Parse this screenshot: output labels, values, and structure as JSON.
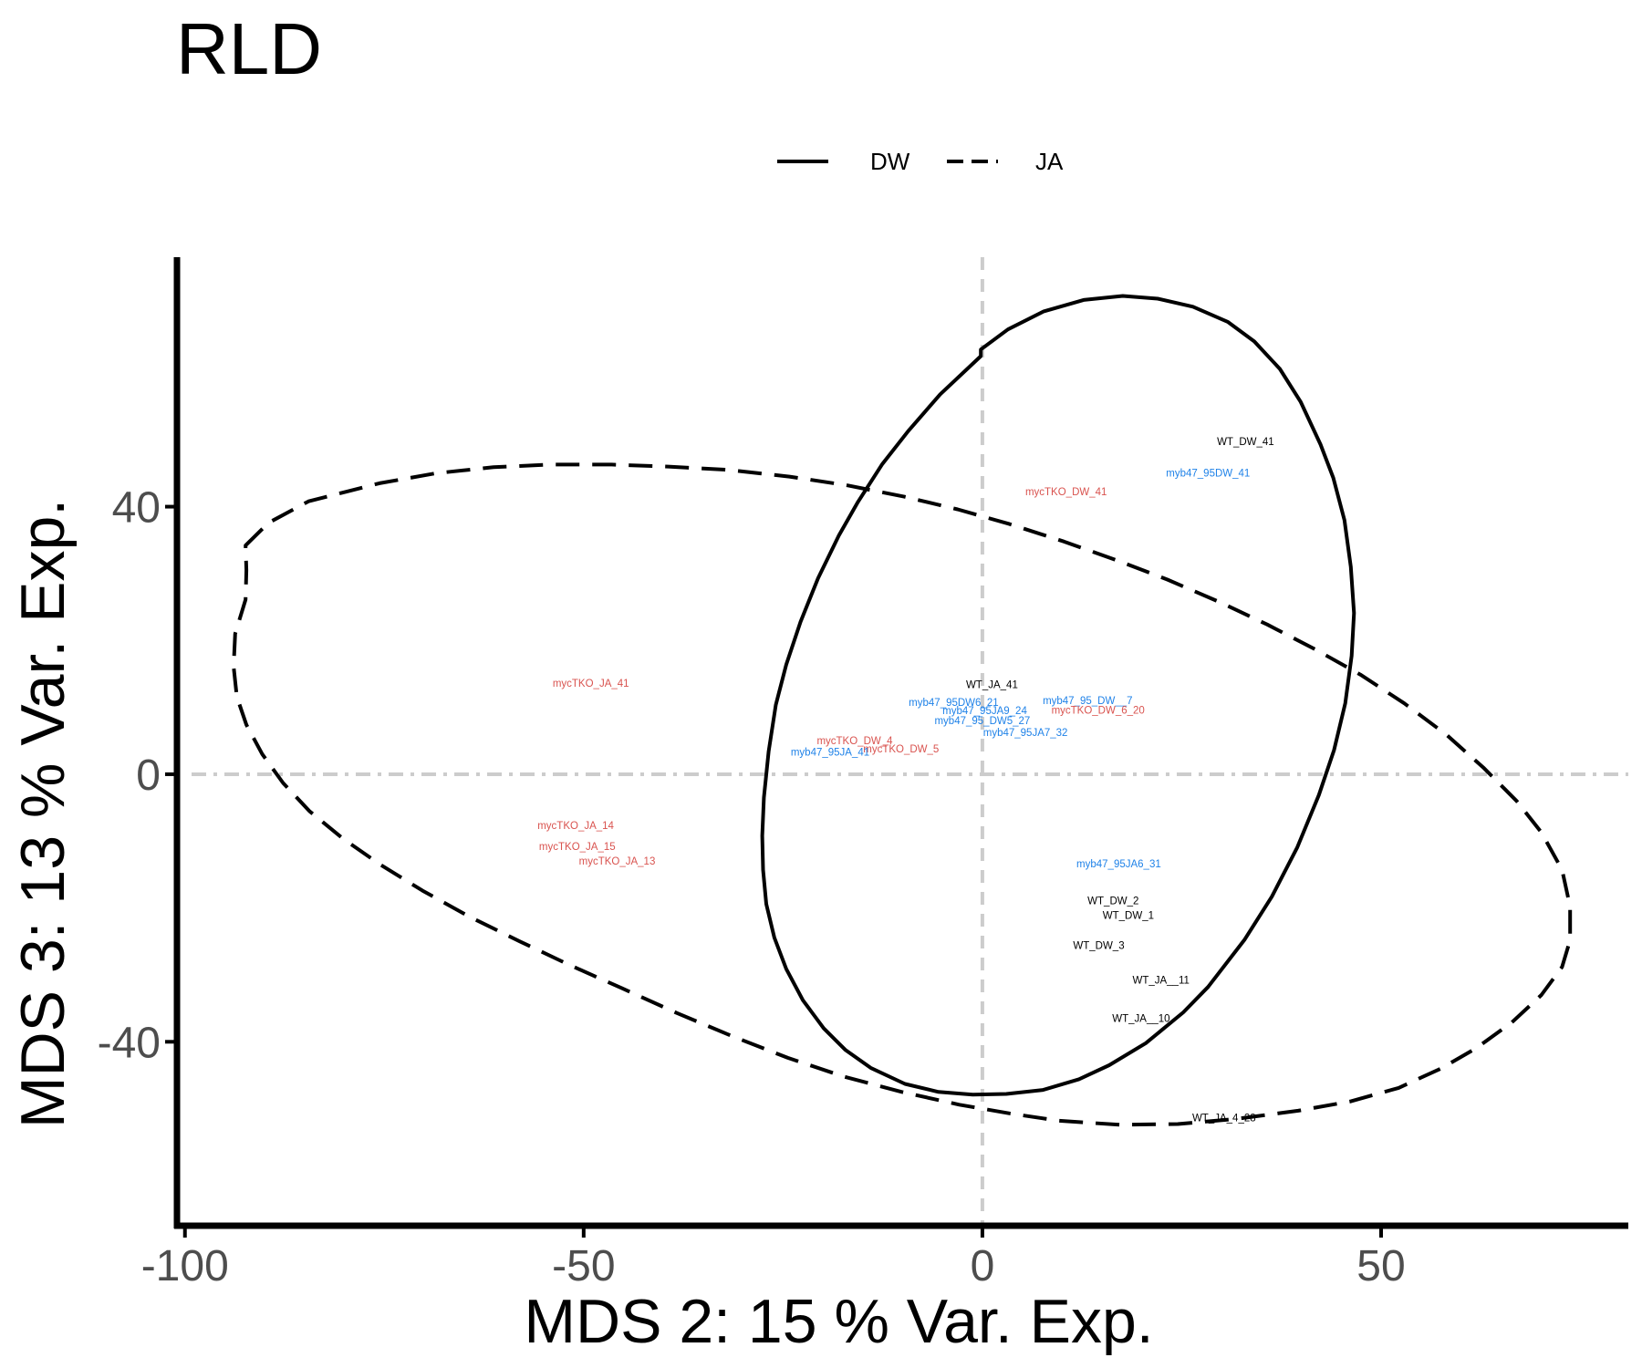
{
  "chart_data": {
    "type": "scatter",
    "title": "RLD",
    "xlabel": "MDS 2: 15 % Var. Exp.",
    "ylabel": "MDS 3: 13 % Var. Exp.",
    "xlim": [
      -101,
      81
    ],
    "ylim": [
      -67.5,
      77.3
    ],
    "xticks": [
      -100,
      -50,
      0,
      50
    ],
    "xtick_labels": [
      "-100",
      "-50",
      "0",
      "50"
    ],
    "yticks": [
      -40,
      0,
      40
    ],
    "ytick_labels": [
      "-40",
      "0",
      "40"
    ],
    "reference_lines": {
      "x": 0,
      "y": 0
    },
    "legend": {
      "placement": "top",
      "entries": [
        {
          "label": "DW",
          "linetype": "solid"
        },
        {
          "label": "JA",
          "linetype": "dashed"
        }
      ]
    },
    "colors": {
      "WT": "#000000",
      "myb47_95": "#1f82e8",
      "mycTKO": "#d9534f",
      "ellipse": "#000000",
      "refline": "#cccccc"
    },
    "points": [
      {
        "label": "WT_DW_41",
        "x": 33,
        "y": 49.6,
        "group": "WT"
      },
      {
        "label": "myb47_95DW_41",
        "x": 28.3,
        "y": 44.9,
        "group": "myb47_95"
      },
      {
        "label": "mycTKO_DW_41",
        "x": 10.5,
        "y": 42.1,
        "group": "mycTKO"
      },
      {
        "label": "mycTKO_JA_41",
        "x": -49.1,
        "y": 13.5,
        "group": "mycTKO"
      },
      {
        "label": "WT_JA_41",
        "x": 1.2,
        "y": 13.3,
        "group": "WT"
      },
      {
        "label": "myb47_95DW6_21",
        "x": -3.6,
        "y": 10.6,
        "group": "myb47_95"
      },
      {
        "label": "myb47_95_DW__7",
        "x": 13.2,
        "y": 10.9,
        "group": "myb47_95"
      },
      {
        "label": "mycTKO_DW_6_20",
        "x": 14.5,
        "y": 9.5,
        "group": "mycTKO"
      },
      {
        "label": "myb47_95JA9_24",
        "x": 0.3,
        "y": 9.4,
        "group": "myb47_95"
      },
      {
        "label": "myb47_95_DW5_27",
        "x": 0,
        "y": 7.9,
        "group": "myb47_95"
      },
      {
        "label": "myb47_95JA7_32",
        "x": 5.4,
        "y": 6.1,
        "group": "myb47_95"
      },
      {
        "label": "mycTKO_DW_4",
        "x": -16,
        "y": 4.9,
        "group": "mycTKO"
      },
      {
        "label": "mycTKO_DW_5",
        "x": -10.2,
        "y": 3.7,
        "group": "mycTKO"
      },
      {
        "label": "myb47_95JA_41",
        "x": -19.1,
        "y": 3.2,
        "group": "myb47_95"
      },
      {
        "label": "mycTKO_JA_14",
        "x": -51,
        "y": -7.8,
        "group": "mycTKO"
      },
      {
        "label": "mycTKO_JA_15",
        "x": -50.8,
        "y": -10.9,
        "group": "mycTKO"
      },
      {
        "label": "mycTKO_JA_13",
        "x": -45.8,
        "y": -13.1,
        "group": "mycTKO"
      },
      {
        "label": "myb47_95JA6_31",
        "x": 17.1,
        "y": -13.5,
        "group": "myb47_95"
      },
      {
        "label": "WT_DW_2",
        "x": 16.4,
        "y": -19,
        "group": "WT"
      },
      {
        "label": "WT_DW_1",
        "x": 18.3,
        "y": -21.2,
        "group": "WT"
      },
      {
        "label": "WT_DW_3",
        "x": 14.6,
        "y": -25.7,
        "group": "WT"
      },
      {
        "label": "WT_JA__11",
        "x": 22.4,
        "y": -30.9,
        "group": "WT"
      },
      {
        "label": "WT_JA__10",
        "x": 19.9,
        "y": -36.6,
        "group": "WT"
      },
      {
        "label": "WT_JA_4_28",
        "x": 30.3,
        "y": -51.5,
        "group": "WT"
      }
    ],
    "ellipses": [
      {
        "name": "DW",
        "linetype": "solid",
        "path": [
          [
            -0.2,
            63.5
          ],
          [
            3.2,
            66.5
          ],
          [
            7.7,
            69.2
          ],
          [
            12.7,
            70.9
          ],
          [
            17.6,
            71.5
          ],
          [
            22,
            71.1
          ],
          [
            26.4,
            69.9
          ],
          [
            30.8,
            67.6
          ],
          [
            34.1,
            64.7
          ],
          [
            37.3,
            60.6
          ],
          [
            39.9,
            55.7
          ],
          [
            42.4,
            49.3
          ],
          [
            44,
            44.3
          ],
          [
            45.4,
            38
          ],
          [
            46.2,
            31
          ],
          [
            46.6,
            24.1
          ],
          [
            46.3,
            17.7
          ],
          [
            45.5,
            10.6
          ],
          [
            44.1,
            3.6
          ],
          [
            42.2,
            -3.1
          ],
          [
            39.5,
            -10.9
          ],
          [
            36.3,
            -18.3
          ],
          [
            32.9,
            -24.7
          ],
          [
            28.3,
            -31.8
          ],
          [
            25.2,
            -35.6
          ],
          [
            20.5,
            -40.2
          ],
          [
            15.9,
            -43.5
          ],
          [
            12.1,
            -45.6
          ],
          [
            7.6,
            -47.2
          ],
          [
            3,
            -47.8
          ],
          [
            -1.2,
            -47.9
          ],
          [
            -5.5,
            -47.5
          ],
          [
            -9.7,
            -46.3
          ],
          [
            -14,
            -43.9
          ],
          [
            -17.2,
            -41.2
          ],
          [
            -19.9,
            -38
          ],
          [
            -22.5,
            -33.8
          ],
          [
            -24.6,
            -29.1
          ],
          [
            -26.1,
            -24.4
          ],
          [
            -27.1,
            -19.4
          ],
          [
            -27.5,
            -14.3
          ],
          [
            -27.6,
            -9.2
          ],
          [
            -27.4,
            -3.5
          ],
          [
            -26.8,
            3.4
          ],
          [
            -25.9,
            10.4
          ],
          [
            -24.6,
            16.4
          ],
          [
            -22.8,
            22.8
          ],
          [
            -20.6,
            29.3
          ],
          [
            -18,
            35.7
          ],
          [
            -15.6,
            40.7
          ],
          [
            -12.6,
            46.3
          ],
          [
            -9.3,
            51.3
          ],
          [
            -5.3,
            56.8
          ],
          [
            -0.2,
            62.5
          ]
        ]
      },
      {
        "name": "JA",
        "linetype": "dashed",
        "path": [
          [
            -92.4,
            34.2
          ],
          [
            -89.5,
            37.6
          ],
          [
            -84.5,
            40.8
          ],
          [
            -75.6,
            43.5
          ],
          [
            -68.5,
            45
          ],
          [
            -61.3,
            45.9
          ],
          [
            -54.1,
            46.3
          ],
          [
            -46.5,
            46.3
          ],
          [
            -39.4,
            46
          ],
          [
            -31.8,
            45.5
          ],
          [
            -24.2,
            44.5
          ],
          [
            -17,
            43.2
          ],
          [
            -9.8,
            41.5
          ],
          [
            -3.1,
            39.6
          ],
          [
            3.4,
            37.4
          ],
          [
            10.2,
            34.8
          ],
          [
            16.8,
            32
          ],
          [
            23.2,
            29.1
          ],
          [
            29.8,
            25.7
          ],
          [
            35.7,
            22.4
          ],
          [
            41.7,
            18.7
          ],
          [
            47.4,
            14.9
          ],
          [
            52.9,
            10.6
          ],
          [
            58.2,
            5.9
          ],
          [
            62.9,
            0.9
          ],
          [
            67,
            -4
          ],
          [
            70.1,
            -8.7
          ],
          [
            72.7,
            -14.3
          ],
          [
            73.7,
            -19.8
          ],
          [
            73.7,
            -24.8
          ],
          [
            72.7,
            -28.8
          ],
          [
            70.1,
            -33
          ],
          [
            66.4,
            -37.1
          ],
          [
            62,
            -40.9
          ],
          [
            57.5,
            -44
          ],
          [
            52.2,
            -46.9
          ],
          [
            46.2,
            -48.9
          ],
          [
            39.6,
            -50.3
          ],
          [
            32,
            -51.5
          ],
          [
            24.5,
            -52.3
          ],
          [
            17.2,
            -52.4
          ],
          [
            9.6,
            -51.8
          ],
          [
            3.4,
            -50.7
          ],
          [
            -2.9,
            -49.4
          ],
          [
            -10.1,
            -47.5
          ],
          [
            -17.4,
            -45.2
          ],
          [
            -24.4,
            -42.4
          ],
          [
            -31.3,
            -39.2
          ],
          [
            -38.3,
            -35.7
          ],
          [
            -45.2,
            -32
          ],
          [
            -51.8,
            -28.5
          ],
          [
            -58,
            -25
          ],
          [
            -64.3,
            -21.3
          ],
          [
            -70.2,
            -17.4
          ],
          [
            -75.5,
            -13.5
          ],
          [
            -80.1,
            -9.7
          ],
          [
            -84.4,
            -5.5
          ],
          [
            -87.7,
            -1.3
          ],
          [
            -90.3,
            3
          ],
          [
            -92.3,
            7.4
          ],
          [
            -93.5,
            11.6
          ],
          [
            -93.9,
            16.1
          ],
          [
            -93.7,
            21
          ],
          [
            -92.4,
            26.1
          ],
          [
            -92.3,
            30.5
          ],
          [
            -92.4,
            34.2
          ]
        ]
      }
    ]
  }
}
